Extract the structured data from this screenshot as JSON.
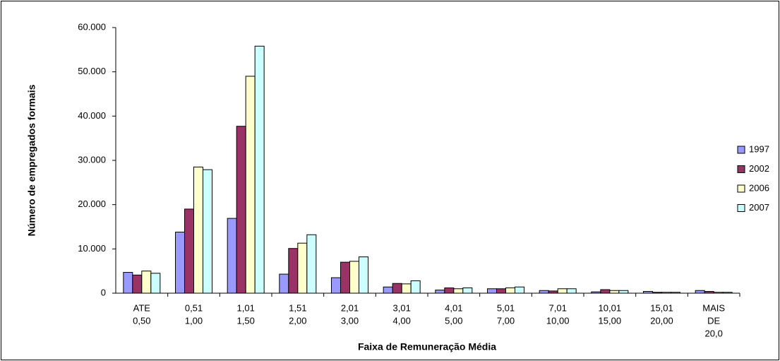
{
  "chart_data": {
    "type": "bar",
    "xlabel": "Faixa de Remuneração Média",
    "ylabel": "Número de empregados formais",
    "categories": [
      [
        "ATE",
        "0,50"
      ],
      [
        "0,51",
        "1,00"
      ],
      [
        "1,01",
        "1,50"
      ],
      [
        "1,51",
        "2,00"
      ],
      [
        "2,01",
        "3,00"
      ],
      [
        "3,01",
        "4,00"
      ],
      [
        "4,01",
        "5,00"
      ],
      [
        "5,01",
        "7,00"
      ],
      [
        "7,01",
        "10,00"
      ],
      [
        "10,01",
        "15,00"
      ],
      [
        "15,01",
        "20,00"
      ],
      [
        "MAIS",
        "DE",
        "20,0"
      ]
    ],
    "series": [
      {
        "name": "1997",
        "color": "#9999ff",
        "values": [
          4700,
          13800,
          16900,
          4300,
          3500,
          1400,
          700,
          1000,
          600,
          300,
          400,
          600
        ]
      },
      {
        "name": "2002",
        "color": "#993366",
        "values": [
          4100,
          19000,
          37700,
          10100,
          7000,
          2200,
          1200,
          1000,
          500,
          800,
          200,
          400
        ]
      },
      {
        "name": "2006",
        "color": "#ffffcc",
        "values": [
          5000,
          28500,
          49000,
          11300,
          7200,
          2100,
          1000,
          1200,
          1000,
          600,
          200,
          200
        ]
      },
      {
        "name": "2007",
        "color": "#ccffff",
        "values": [
          4500,
          27900,
          55800,
          13200,
          8200,
          2800,
          1200,
          1400,
          1000,
          600,
          200,
          200
        ]
      }
    ],
    "ylim": [
      0,
      60000
    ],
    "yticks": [
      0,
      {
        "value": 10000,
        "label": "10.000"
      },
      {
        "value": 20000,
        "label": "20.000"
      },
      {
        "value": 30000,
        "label": "30.000"
      },
      {
        "value": 40000,
        "label": "40.000"
      },
      {
        "value": 50000,
        "label": "50.000"
      },
      {
        "value": 60000,
        "label": "60.000"
      }
    ],
    "grid": false,
    "legend": "right"
  }
}
